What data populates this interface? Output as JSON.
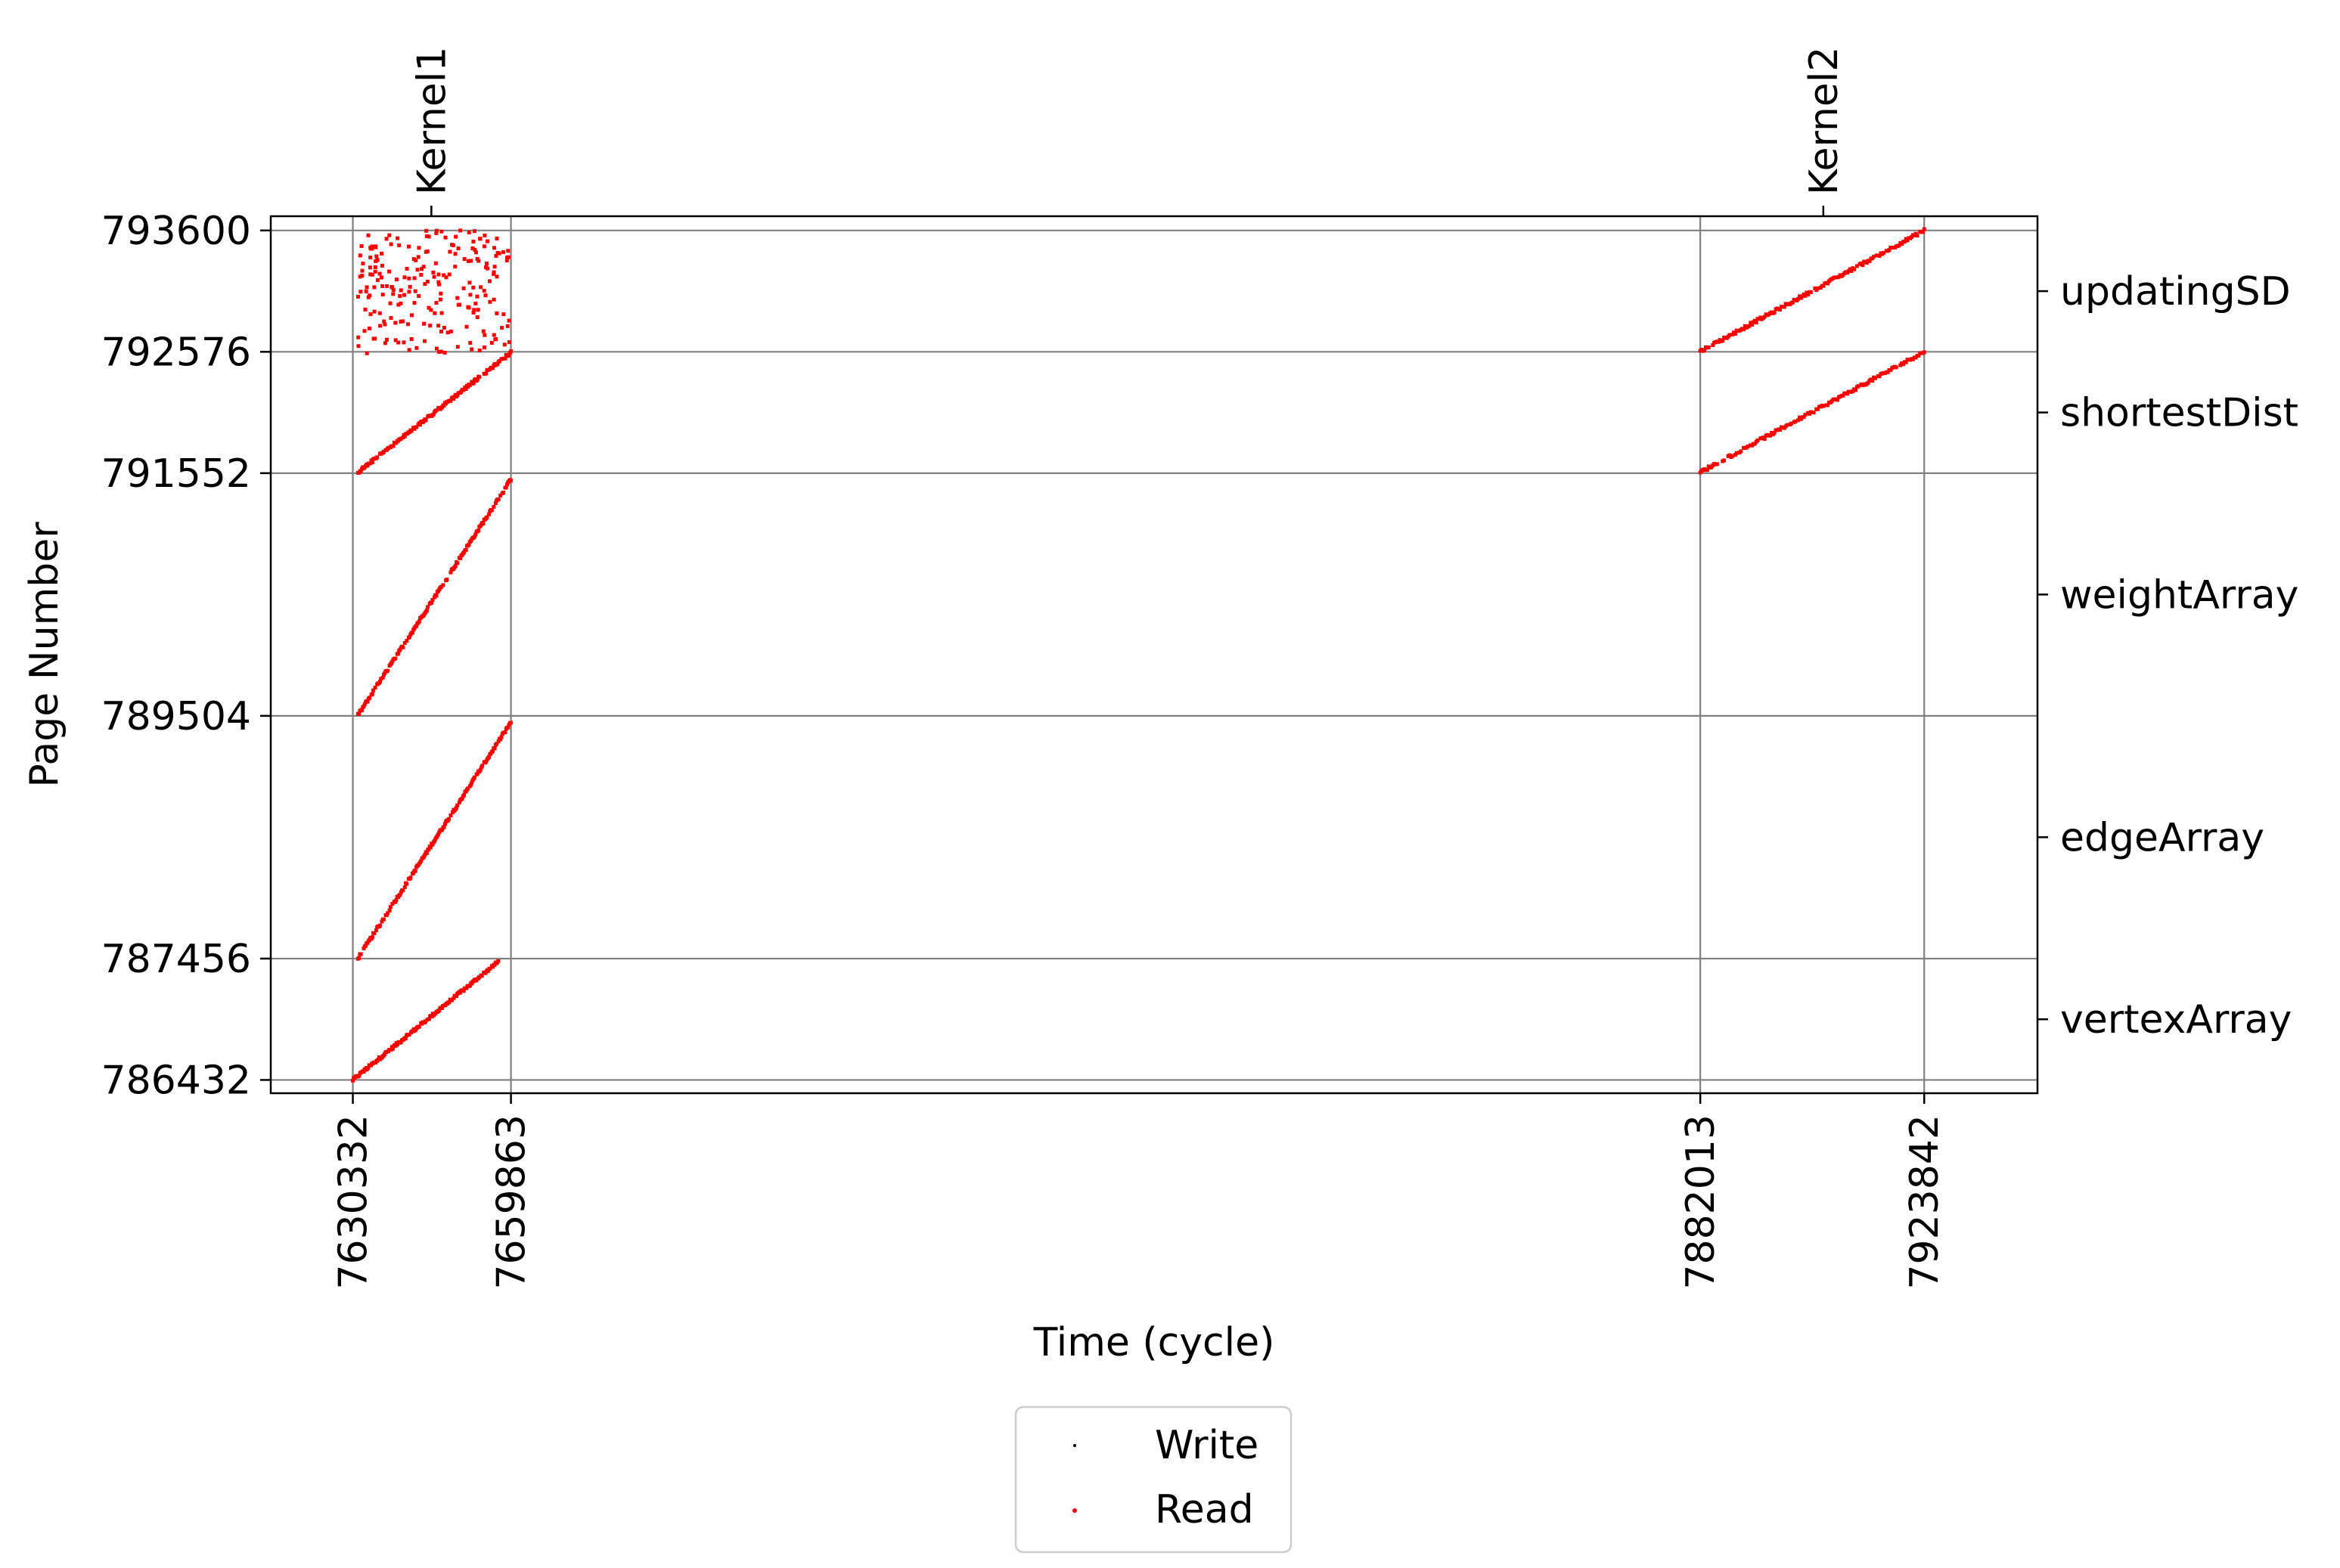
{
  "chart_data": {
    "type": "scatter",
    "title": "",
    "xlabel": "Time (cycle)",
    "ylabel": "Page Number",
    "xlim": [
      7615000,
      7945000
    ],
    "ylim": [
      786320,
      793720
    ],
    "grid": true,
    "legend_position": "bottom-center",
    "x_ticks": [
      7630332,
      7659863,
      7882013,
      7923842
    ],
    "x_tick_labels": [
      "7630332",
      "7659863",
      "7882013",
      "7923842"
    ],
    "y_ticks": [
      786432,
      787456,
      789504,
      791552,
      792576,
      793600
    ],
    "y_tick_labels": [
      "786432",
      "787456",
      "789504",
      "791552",
      "792576",
      "793600"
    ],
    "right_axis_labels": [
      {
        "label": "updatingSD",
        "y": 793088
      },
      {
        "label": "shortestDist",
        "y": 792064
      },
      {
        "label": "weightArray",
        "y": 790528
      },
      {
        "label": "edgeArray",
        "y": 788480
      },
      {
        "label": "vertexArray",
        "y": 786944
      }
    ],
    "top_axis_labels": [
      {
        "label": "Kernel1",
        "x": 7645000
      },
      {
        "label": "Kernel2",
        "x": 7905000
      }
    ],
    "series": [
      {
        "name": "Write",
        "color": "#000000",
        "marker": "dot",
        "points": []
      },
      {
        "name": "Read",
        "color": "#ff0000",
        "marker": "dot",
        "segments": [
          {
            "region": "vertexArray",
            "x": [
              7630332,
              7657500
            ],
            "y": [
              786432,
              787430
            ]
          },
          {
            "region": "edgeArray",
            "x": [
              7631300,
              7659863
            ],
            "y": [
              787460,
              789450
            ]
          },
          {
            "region": "weightArray",
            "x": [
              7631300,
              7659863
            ],
            "y": [
              789510,
              791500
            ]
          },
          {
            "region": "shortestDist",
            "x": [
              7631300,
              7659863
            ],
            "y": [
              791560,
              792570
            ]
          },
          {
            "region": "shortestDist",
            "x": [
              7882013,
              7923842
            ],
            "y": [
              791560,
              792576
            ]
          },
          {
            "region": "updatingSD",
            "x": [
              7882013,
              7923842
            ],
            "y": [
              792580,
              793600
            ]
          }
        ],
        "random_block": {
          "region": "updatingSD",
          "x": [
            7631300,
            7659863
          ],
          "y": [
            792560,
            793600
          ]
        }
      }
    ],
    "legend": [
      "Write",
      "Read"
    ]
  }
}
